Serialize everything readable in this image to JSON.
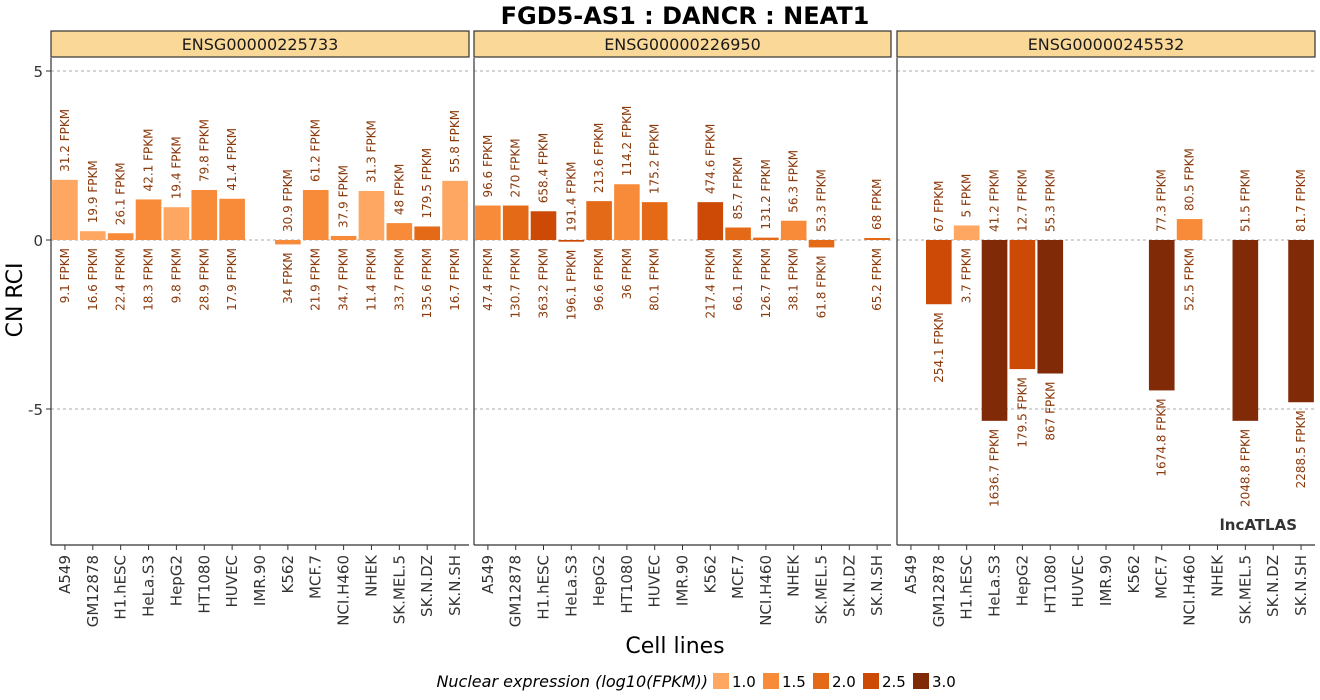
{
  "chart_data": {
    "type": "bar",
    "title": "FGD5-AS1 : DANCR : NEAT1",
    "xlabel": "Cell lines",
    "ylabel": "CN RCI",
    "ylim": [
      -9,
      5.9
    ],
    "yticks": [
      5,
      0,
      -5
    ],
    "grid": "dashed horizontal at 5, 0, -5",
    "watermark": "lncATLAS",
    "categories": [
      "A549",
      "GM12878",
      "H1.hESC",
      "HeLa.S3",
      "HepG2",
      "HT1080",
      "HUVEC",
      "IMR.90",
      "K562",
      "MCF.7",
      "NCI.H460",
      "NHEK",
      "SK.MEL.5",
      "SK.N.DZ",
      "SK.N.SH"
    ],
    "legend": {
      "title": "Nuclear expression (log10(FPKM))",
      "placement": "bottom",
      "items": [
        {
          "label": "1.0",
          "color": "#FDA762"
        },
        {
          "label": "1.5",
          "color": "#F88B3A"
        },
        {
          "label": "2.0",
          "color": "#E56A18"
        },
        {
          "label": "2.5",
          "color": "#CC4A06"
        },
        {
          "label": "3.0",
          "color": "#802A07"
        }
      ]
    },
    "panels": [
      {
        "label": "ENSG00000225733",
        "values": [
          1.78,
          0.26,
          0.2,
          1.2,
          0.97,
          1.48,
          1.22,
          null,
          -0.13,
          1.48,
          0.12,
          1.45,
          0.5,
          0.4,
          1.75
        ],
        "nuc_log": [
          1.0,
          1.2,
          1.4,
          1.3,
          1.0,
          1.5,
          1.3,
          null,
          1.5,
          1.3,
          1.5,
          1.1,
          1.5,
          2.1,
          1.2
        ],
        "top_labels": [
          "31.2 FPKM",
          "19.9 FPKM",
          "26.1 FPKM",
          "42.1 FPKM",
          "19.4 FPKM",
          "79.8 FPKM",
          "41.4 FPKM",
          "",
          "30.9 FPKM",
          "61.2 FPKM",
          "37.9 FPKM",
          "31.3 FPKM",
          "48 FPKM",
          "179.5 FPKM",
          "55.8 FPKM"
        ],
        "bottom_labels": [
          "9.1 FPKM",
          "16.6 FPKM",
          "22.4 FPKM",
          "18.3 FPKM",
          "9.8 FPKM",
          "28.9 FPKM",
          "17.9 FPKM",
          "",
          "34 FPKM",
          "21.9 FPKM",
          "34.7 FPKM",
          "11.4 FPKM",
          "33.7 FPKM",
          "135.6 FPKM",
          "16.7 FPKM"
        ]
      },
      {
        "label": "ENSG00000226950",
        "values": [
          1.02,
          1.02,
          0.85,
          -0.05,
          1.15,
          1.65,
          1.12,
          null,
          1.12,
          0.37,
          0.07,
          0.57,
          -0.22,
          null,
          0.06
        ],
        "nuc_log": [
          1.7,
          2.1,
          2.6,
          2.3,
          2.0,
          1.6,
          1.9,
          null,
          2.3,
          1.8,
          2.1,
          1.6,
          1.8,
          null,
          1.8
        ],
        "top_labels": [
          "96.6 FPKM",
          "270 FPKM",
          "658.4 FPKM",
          "191.4 FPKM",
          "213.6 FPKM",
          "114.2 FPKM",
          "175.2 FPKM",
          "",
          "474.6 FPKM",
          "85.7 FPKM",
          "131.2 FPKM",
          "56.3 FPKM",
          "53.3 FPKM",
          "",
          "68 FPKM"
        ],
        "bottom_labels": [
          "47.4 FPKM",
          "130.7 FPKM",
          "363.2 FPKM",
          "196.1 FPKM",
          "96.6 FPKM",
          "36 FPKM",
          "80.1 FPKM",
          "",
          "217.4 FPKM",
          "66.1 FPKM",
          "126.7 FPKM",
          "38.1 FPKM",
          "61.8 FPKM",
          "",
          "65.2 FPKM"
        ]
      },
      {
        "label": "ENSG00000245532",
        "values": [
          null,
          -1.9,
          0.43,
          -5.35,
          -3.82,
          -3.95,
          null,
          null,
          null,
          -4.45,
          0.62,
          null,
          -5.35,
          null,
          -4.8
        ],
        "nuc_log": [
          null,
          2.4,
          0.6,
          3.2,
          2.3,
          2.9,
          null,
          null,
          null,
          3.2,
          1.7,
          null,
          3.3,
          null,
          3.4
        ],
        "top_labels": [
          "",
          "67 FPKM",
          "5 FPKM",
          "41.2 FPKM",
          "12.7 FPKM",
          "55.3 FPKM",
          "",
          "",
          "",
          "77.3 FPKM",
          "80.5 FPKM",
          "",
          "51.5 FPKM",
          "",
          "81.7 FPKM"
        ],
        "bottom_labels": [
          "",
          "254.1 FPKM",
          "3.7 FPKM",
          "1636.7 FPKM",
          "179.5 FPKM",
          "867 FPKM",
          "",
          "",
          "",
          "1674.8 FPKM",
          "52.5 FPKM",
          "",
          "2048.8 FPKM",
          "",
          "2288.5 FPKM"
        ]
      }
    ]
  }
}
